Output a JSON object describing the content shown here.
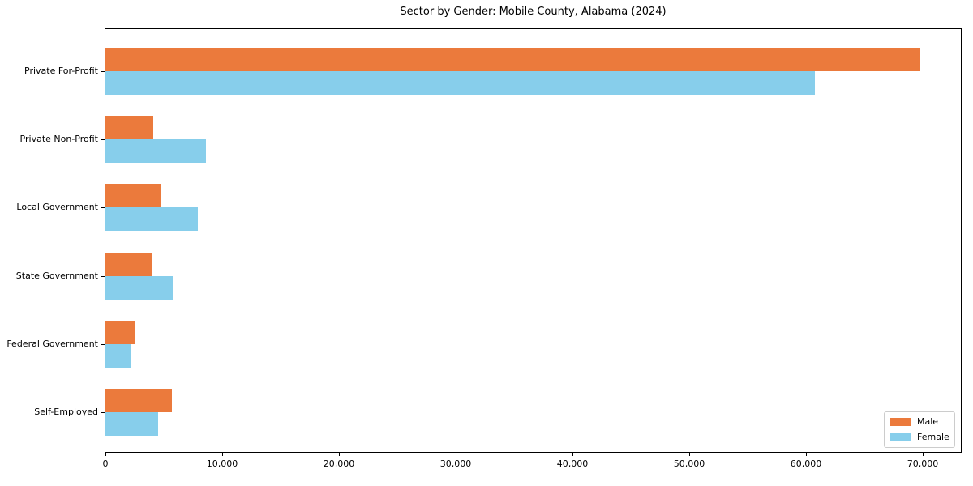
{
  "title": "Sector by Gender: Mobile County, Alabama (2024)",
  "colors": {
    "male": "#EB7A3C",
    "female": "#87CEEB",
    "spine": "#000000",
    "legend_border": "#CCCCCC",
    "background": "#FFFFFF"
  },
  "legend": {
    "position": "lower right",
    "items": [
      {
        "label": "Male",
        "color": "#EB7A3C"
      },
      {
        "label": "Female",
        "color": "#87CEEB"
      }
    ]
  },
  "chart_data": {
    "type": "bar",
    "orientation": "horizontal",
    "title": "Sector by Gender: Mobile County, Alabama (2024)",
    "categories": [
      "Private For-Profit",
      "Private Non-Profit",
      "Local Government",
      "State Government",
      "Federal Government",
      "Self-Employed"
    ],
    "series": [
      {
        "name": "Male",
        "color": "#EB7A3C",
        "values": [
          69800,
          4100,
          4700,
          3950,
          2500,
          5700
        ]
      },
      {
        "name": "Female",
        "color": "#87CEEB",
        "values": [
          60800,
          8600,
          7900,
          5750,
          2200,
          4500
        ]
      }
    ],
    "xlabel": "",
    "ylabel": "",
    "xlim": [
      0,
      73300
    ],
    "xticks": [
      0,
      10000,
      20000,
      30000,
      40000,
      50000,
      60000,
      70000
    ],
    "xtick_labels": [
      "0",
      "10,000",
      "20,000",
      "30,000",
      "40,000",
      "50,000",
      "60,000",
      "70,000"
    ],
    "grid": false,
    "legend_position": "lower right"
  }
}
